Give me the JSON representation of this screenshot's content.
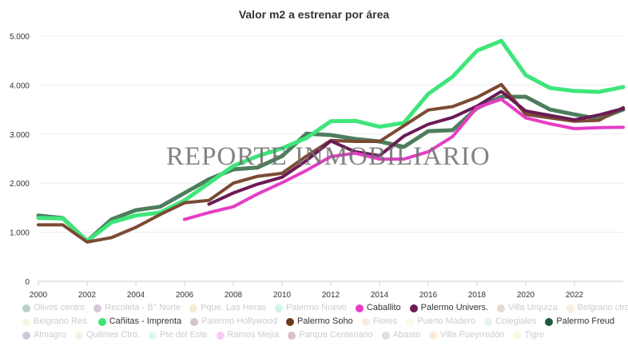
{
  "chart_data": {
    "type": "line",
    "title": "Valor m2 a estrenar por área",
    "watermark": "REPORTE INMOBILIARIO",
    "xlabel": "",
    "ylabel": "",
    "xlim": [
      2000,
      2024
    ],
    "ylim": [
      0,
      5000
    ],
    "x_ticks": [
      "2000",
      "2002",
      "2004",
      "2006",
      "2008",
      "2010",
      "2012",
      "2014",
      "2016",
      "2018",
      "2020",
      "2022"
    ],
    "y_ticks": [
      "0",
      "1.000",
      "2.000",
      "3.000",
      "4.000",
      "5.000"
    ],
    "grid": "horizontal",
    "legend_position": "bottom",
    "legend": [
      {
        "name": "Olivos centro",
        "color": "#2f7d56",
        "visible": false
      },
      {
        "name": "Recoleta - B° Norte",
        "color": "#8e5a8e",
        "visible": false
      },
      {
        "name": "Pque. Las Heras",
        "color": "#e8c07a",
        "visible": false
      },
      {
        "name": "Palermo Nuevo",
        "color": "#7fe0c8",
        "visible": false
      },
      {
        "name": "Caballito",
        "color": "#e53ec4",
        "visible": true
      },
      {
        "name": "Palermo Univers.",
        "color": "#6b1a55",
        "visible": true
      },
      {
        "name": "Villa Urquiza",
        "color": "#b8947a",
        "visible": false
      },
      {
        "name": "Belgrano ctro.",
        "color": "#e8c8a0",
        "visible": false
      },
      {
        "name": "Belgrano Res.",
        "color": "#dff0a8",
        "visible": false
      },
      {
        "name": "Cañitas - Imprenta",
        "color": "#3ee67a",
        "visible": true
      },
      {
        "name": "Palermo Hollywood",
        "color": "#8e5a6e",
        "visible": false
      },
      {
        "name": "Palermo Soho",
        "color": "#6b3a1e",
        "visible": true
      },
      {
        "name": "Flores",
        "color": "#f3c79a",
        "visible": false
      },
      {
        "name": "Puerto Madero",
        "color": "#f6eec0",
        "visible": false
      },
      {
        "name": "Colegiales",
        "color": "#b8e0c0",
        "visible": false
      },
      {
        "name": "Palermo Freud",
        "color": "#1e5a3a",
        "visible": true
      },
      {
        "name": "Almagro",
        "color": "#7a5a8e",
        "visible": false
      },
      {
        "name": "Quilmes Ctro.",
        "color": "#f0d8a8",
        "visible": false
      },
      {
        "name": "Pte del Este",
        "color": "#9ae8e0",
        "visible": false
      },
      {
        "name": "Ramos Mejía",
        "color": "#f06ac8",
        "visible": false
      },
      {
        "name": "Parque Centenario",
        "color": "#8a4a7a",
        "visible": false
      },
      {
        "name": "Abasto",
        "color": "#b89a8a",
        "visible": false
      },
      {
        "name": "Villa Pueyrredón",
        "color": "#f0c890",
        "visible": false
      },
      {
        "name": "Tigre",
        "color": "#f4f0a0",
        "visible": false
      }
    ],
    "series": [
      {
        "name": "Palermo Freud",
        "color": "#4e7d5e",
        "width": 5,
        "x": [
          2000,
          2001,
          2002,
          2003,
          2004,
          2005,
          2006,
          2007,
          2008,
          2009,
          2010,
          2011,
          2012,
          2013,
          2014,
          2015,
          2016,
          2017,
          2018,
          2019,
          2020,
          2021,
          2022,
          2023,
          2024
        ],
        "y": [
          1340,
          1290,
          820,
          1260,
          1450,
          1520,
          1800,
          2080,
          2280,
          2320,
          2550,
          3010,
          2980,
          2900,
          2850,
          2740,
          3060,
          3080,
          3530,
          3760,
          3760,
          3500,
          3400,
          3310,
          3500
        ]
      },
      {
        "name": "Cañitas - Imprenta",
        "color": "#3ee67a",
        "width": 5,
        "x": [
          2000,
          2001,
          2002,
          2003,
          2004,
          2005,
          2006,
          2007,
          2008,
          2009,
          2010,
          2011,
          2012,
          2013,
          2014,
          2015,
          2016,
          2017,
          2018,
          2019,
          2020,
          2021,
          2022,
          2023,
          2024
        ],
        "y": [
          1290,
          1280,
          820,
          1200,
          1340,
          1400,
          1650,
          2000,
          2350,
          2550,
          2710,
          2920,
          3260,
          3270,
          3150,
          3230,
          3820,
          4170,
          4700,
          4900,
          4200,
          3940,
          3880,
          3860,
          3960
        ]
      },
      {
        "name": "Palermo Soho",
        "color": "#7b4a33",
        "width": 4,
        "x": [
          2000,
          2001,
          2002,
          2003,
          2004,
          2005,
          2006,
          2007,
          2008,
          2009,
          2010,
          2011,
          2012,
          2013,
          2014,
          2015,
          2016,
          2017,
          2018,
          2019,
          2020,
          2021,
          2022,
          2023,
          2024
        ],
        "y": [
          1150,
          1150,
          800,
          890,
          1100,
          1360,
          1600,
          1650,
          2000,
          2140,
          2200,
          2550,
          2870,
          2850,
          2850,
          3170,
          3490,
          3560,
          3750,
          4010,
          3400,
          3330,
          3260,
          3280,
          3540
        ]
      },
      {
        "name": "Palermo Univers.",
        "color": "#6b1a55",
        "width": 4,
        "x": [
          2007,
          2008,
          2009,
          2010,
          2011,
          2012,
          2013,
          2014,
          2015,
          2016,
          2017,
          2018,
          2019,
          2020,
          2021,
          2022,
          2023,
          2024
        ],
        "y": [
          1570,
          1800,
          1980,
          2120,
          2460,
          2860,
          2640,
          2560,
          2960,
          3200,
          3340,
          3570,
          3870,
          3470,
          3380,
          3290,
          3390,
          3520
        ]
      },
      {
        "name": "Caballito",
        "color": "#e53ec4",
        "width": 4,
        "x": [
          2006,
          2007,
          2008,
          2009,
          2010,
          2011,
          2012,
          2013,
          2014,
          2015,
          2016,
          2017,
          2018,
          2019,
          2020,
          2021,
          2022,
          2023,
          2024
        ],
        "y": [
          1260,
          1400,
          1520,
          1780,
          2010,
          2260,
          2540,
          2610,
          2490,
          2490,
          2640,
          2950,
          3540,
          3710,
          3330,
          3210,
          3110,
          3130,
          3140
        ]
      }
    ]
  }
}
